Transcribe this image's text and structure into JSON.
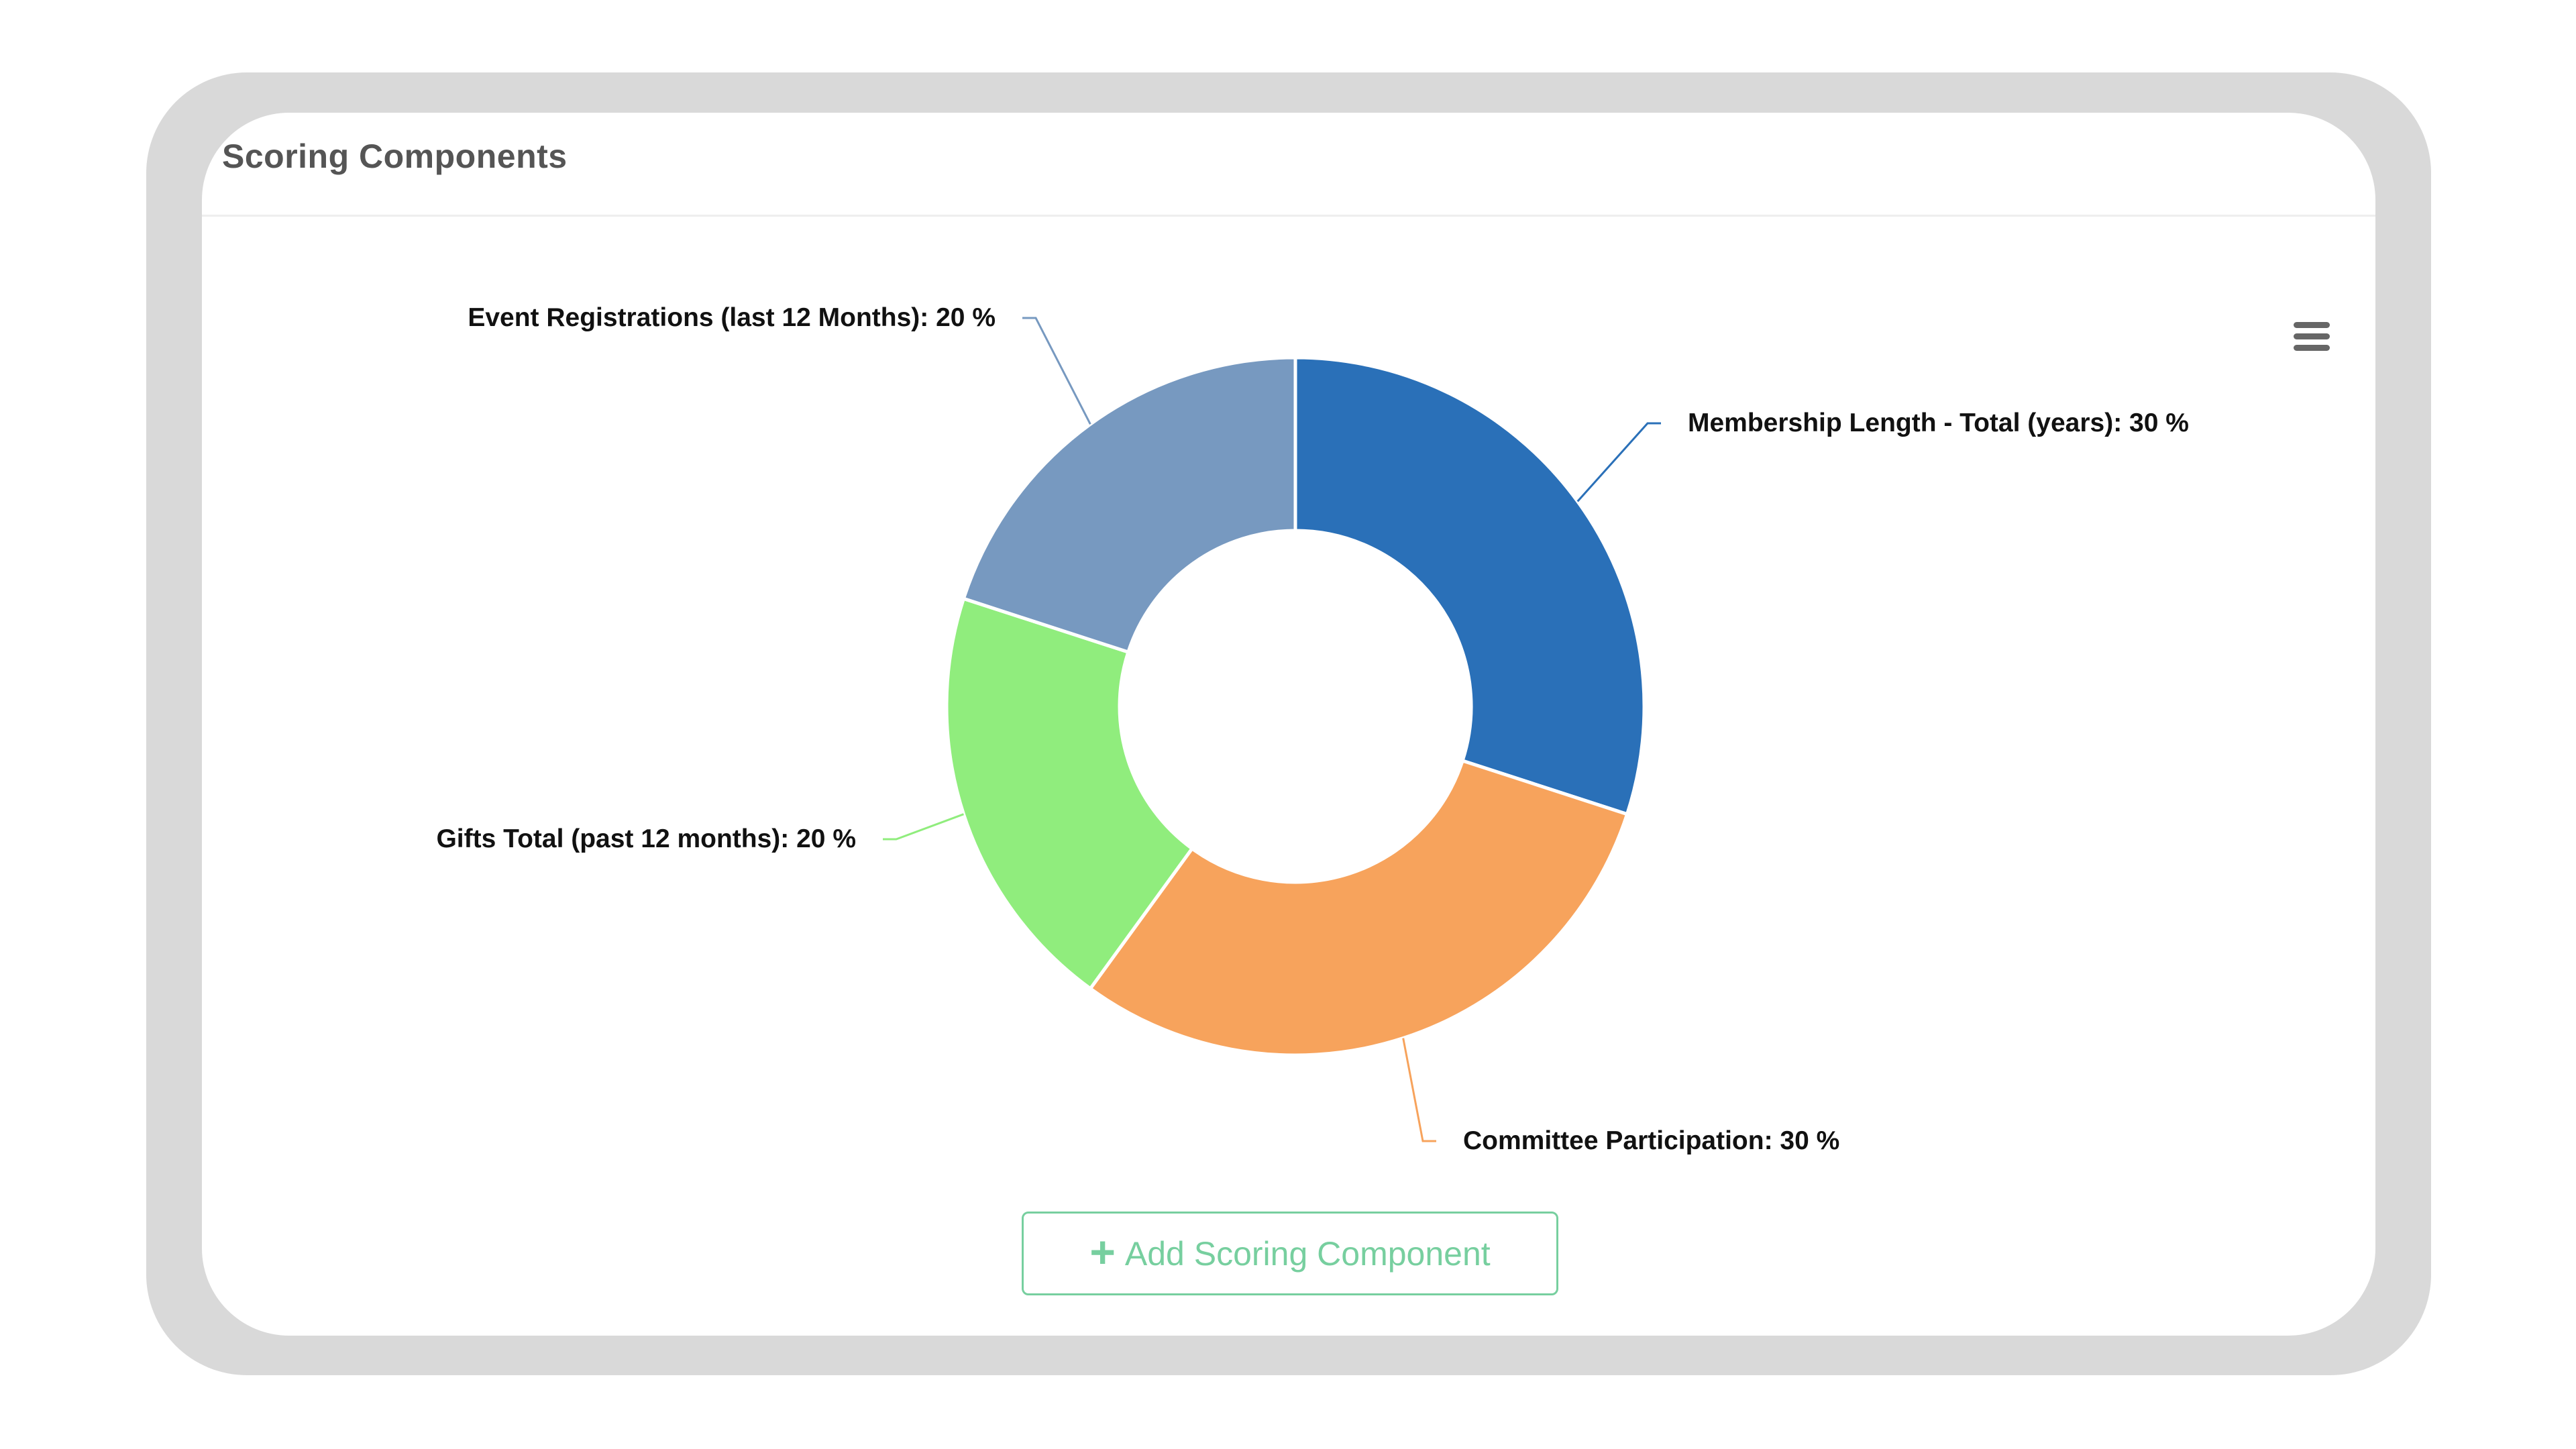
{
  "panel": {
    "title": "Scoring Components"
  },
  "menu_icon": "hamburger-menu-icon",
  "add_button": {
    "icon": "plus-icon",
    "plus_glyph": "+",
    "label": "Add Scoring Component"
  },
  "colors": {
    "frame": "#d9d9d9",
    "accent_green": "#77cf9f"
  },
  "chart_data": {
    "type": "pie",
    "donut": true,
    "label_suffix": ": ",
    "unit": " %",
    "slices": [
      {
        "label": "Membership Length - Total (years)",
        "value": 30,
        "color": "#2a70b8"
      },
      {
        "label": "Committee Participation",
        "value": 30,
        "color": "#f7a35c"
      },
      {
        "label": "Gifts Total (past 12 months)",
        "value": 20,
        "color": "#90ed7d"
      },
      {
        "label": "Event Registrations (last 12 Months)",
        "value": 20,
        "color": "#7799c0"
      }
    ]
  }
}
